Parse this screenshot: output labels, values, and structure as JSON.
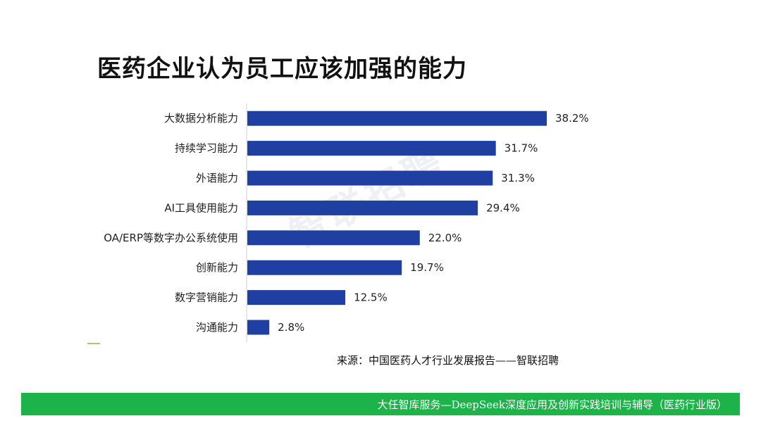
{
  "title": "医药企业认为员工应该加强的能力",
  "watermark": "智联招聘",
  "source": "来源：中国医药人才行业发展报告——智联招聘",
  "footer": "大任智库服务—DeepSeek深度应用及创新实践培训与辅导（医药行业版）",
  "colors": {
    "bar": "#1f3fa3",
    "footer": "#1bb34a"
  },
  "chart_data": {
    "type": "bar",
    "orientation": "horizontal",
    "title": "医药企业认为员工应该加强的能力",
    "categories": [
      "大数据分析能力",
      "持续学习能力",
      "外语能力",
      "AI工具使用能力",
      "OA/ERP等数字办公系统使用",
      "创新能力",
      "数字营销能力",
      "沟通能力"
    ],
    "values": [
      38.2,
      31.7,
      31.3,
      29.4,
      22.0,
      19.7,
      12.5,
      2.8
    ],
    "value_labels": [
      "38.2%",
      "31.7%",
      "31.3%",
      "29.4%",
      "22.0%",
      "19.7%",
      "12.5%",
      "2.8%"
    ],
    "unit": "%",
    "xlim": [
      0,
      38.2
    ],
    "xlabel": "",
    "ylabel": "",
    "grid": false
  }
}
